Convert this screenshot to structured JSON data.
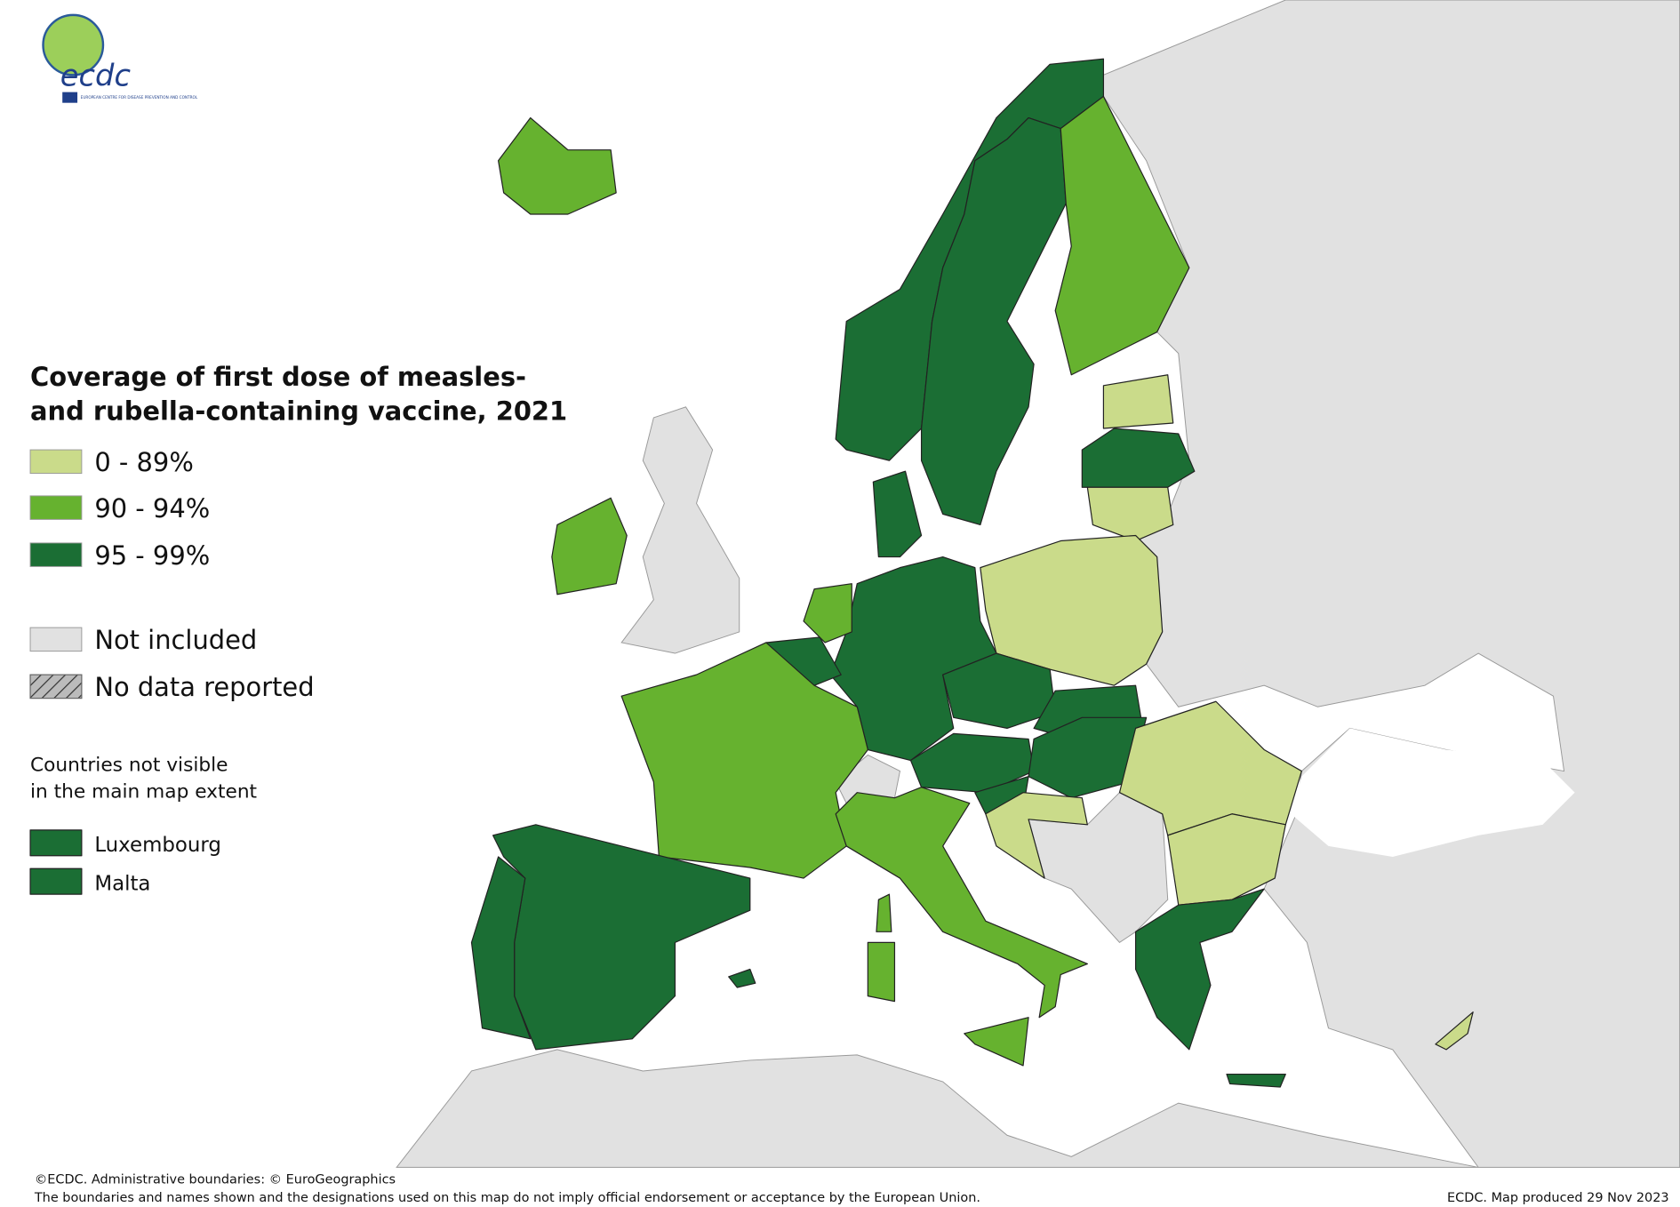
{
  "logo": {
    "text": "ecdc",
    "subtitle": "EUROPEAN CENTRE FOR DISEASE PREVENTION AND CONTROL"
  },
  "legend": {
    "title": [
      "Coverage of first dose of measles-",
      "and rubella-containing vaccine, 2021"
    ],
    "classes": [
      {
        "label": "0 - 89%",
        "color": "#cadb8a"
      },
      {
        "label": "90 - 94%",
        "color": "#66b22f"
      },
      {
        "label": "95 - 99%",
        "color": "#1b6e34"
      }
    ],
    "not_included": {
      "label": "Not included",
      "color": "#e1e1e1"
    },
    "no_data": {
      "label": "No data reported"
    }
  },
  "inset": {
    "title": [
      "Countries not visible",
      "in the main map extent"
    ],
    "countries": [
      {
        "name": "Luxembourg",
        "color": "#1b6e34"
      },
      {
        "name": "Malta",
        "color": "#1b6e34"
      }
    ]
  },
  "footer": {
    "credit": "©ECDC. Administrative boundaries: © EuroGeographics",
    "disclaimer": "The boundaries and names shown and the designations used on this map do not imply official endorsement or acceptance by the European Union.",
    "produced": "ECDC. Map produced 29 Nov 2023"
  }
}
